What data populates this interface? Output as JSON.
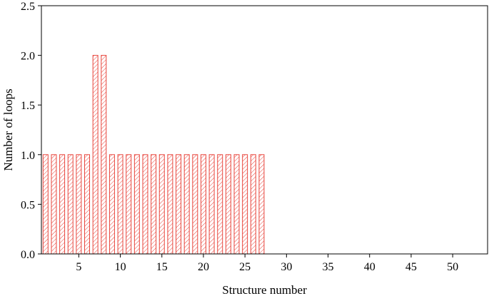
{
  "chart_data": {
    "type": "bar",
    "x": [
      1,
      2,
      3,
      4,
      5,
      6,
      7,
      8,
      9,
      10,
      11,
      12,
      13,
      14,
      15,
      16,
      17,
      18,
      19,
      20,
      21,
      22,
      23,
      24,
      25,
      26,
      27
    ],
    "values": [
      1,
      1,
      1,
      1,
      1,
      1,
      2,
      2,
      1,
      1,
      1,
      1,
      1,
      1,
      1,
      1,
      1,
      1,
      1,
      1,
      1,
      1,
      1,
      1,
      1,
      1,
      1
    ],
    "title": "",
    "xlabel": "Structure number",
    "ylabel": "Number of loops",
    "xlim": [
      0.5,
      54.2
    ],
    "ylim": [
      0,
      2.5
    ],
    "xticks": [
      5,
      10,
      15,
      20,
      25,
      30,
      35,
      40,
      45,
      50
    ],
    "yticks": [
      0.0,
      0.5,
      1.0,
      1.5,
      2.0,
      2.5
    ],
    "ytick_labels": [
      "0.0",
      "0.5",
      "1.0",
      "1.5",
      "2.0",
      "2.5"
    ],
    "bar_width": 0.6,
    "bar_color": "#e8453c",
    "bar_fill": "diagonal-hatch",
    "grid": false,
    "legend": "none"
  }
}
